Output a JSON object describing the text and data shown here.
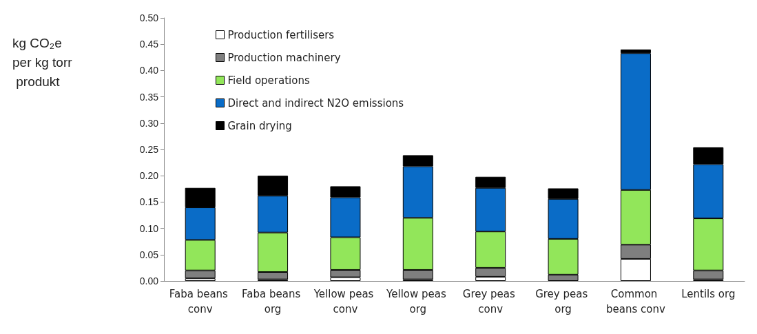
{
  "chart_data": {
    "type": "bar",
    "stacked": true,
    "annotations": [
      "kg CO₂e per kg torr produkt"
    ],
    "categories": [
      "Faba beans conv",
      "Faba beans org",
      "Yellow peas conv",
      "Yellow peas org",
      "Grey peas conv",
      "Grey peas org",
      "Common beans conv",
      "Lentils org"
    ],
    "series": [
      {
        "name": "Production fertilisers",
        "color": "#ffffff",
        "values": [
          0.005,
          0.003,
          0.007,
          0.003,
          0.008,
          null,
          0.042,
          0.003
        ]
      },
      {
        "name": "Production machinery",
        "color": "#7f7f7f",
        "values": [
          0.015,
          0.014,
          0.014,
          0.018,
          0.017,
          0.012,
          0.027,
          0.017
        ]
      },
      {
        "name": "Field operations",
        "color": "#92e65a",
        "values": [
          0.058,
          0.075,
          0.062,
          0.099,
          0.069,
          0.068,
          0.104,
          0.099
        ]
      },
      {
        "name": "Direct and indirect N2O emissions",
        "color": "#0a6cc7",
        "values": [
          0.062,
          0.07,
          0.076,
          0.098,
          0.083,
          0.076,
          0.26,
          0.103
        ]
      },
      {
        "name": "Grain drying",
        "color": "#000000",
        "values": [
          0.037,
          0.038,
          0.021,
          0.021,
          0.021,
          0.02,
          0.007,
          0.032
        ]
      }
    ],
    "ylim": [
      0,
      0.5
    ],
    "yticks": [
      {
        "value": 0,
        "label": "0.00"
      },
      0.05,
      {
        "value": 0.1,
        "label": "0.10"
      },
      0.15,
      {
        "value": 0.2,
        "label": "0.20"
      },
      0.25,
      {
        "value": 0.3,
        "label": "0.30"
      },
      0.35,
      {
        "value": 0.4,
        "label": "0.40"
      },
      0.45,
      {
        "value": 0.5,
        "label": "0.50"
      }
    ],
    "grid": false,
    "legend": "top left"
  }
}
